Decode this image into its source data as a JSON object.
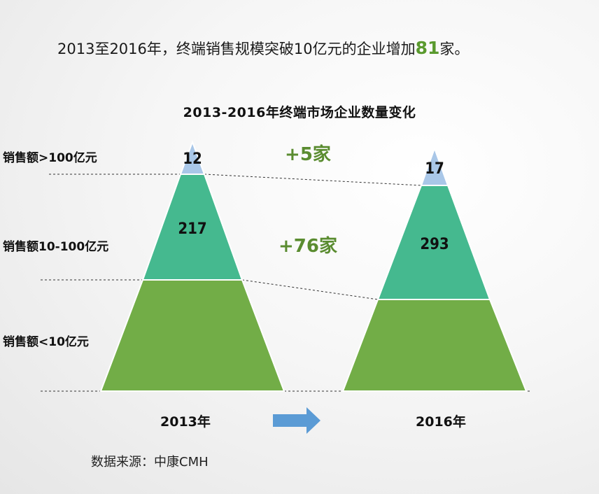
{
  "headline": {
    "prefix": "2013至2016年，终端销售规模突破10亿元的企业增加",
    "number": "81",
    "suffix": "家。"
  },
  "source": "数据来源：中康CMH",
  "chart_data": {
    "type": "pyramid",
    "title": "2013-2016年终端市场企业数量变化",
    "tiers": [
      "销售额>100亿元",
      "销售额10-100亿元",
      "销售额<10亿元"
    ],
    "series": [
      {
        "name": "2013年",
        "values": [
          12,
          217,
          null
        ]
      },
      {
        "name": "2016年",
        "values": [
          17,
          293,
          null
        ]
      }
    ],
    "annotations": [
      "+5家",
      "+76家"
    ],
    "colors": {
      "top": "#a9c7e8",
      "middle": "#45b98f",
      "bottom": "#72ad47",
      "arrow": "#5b9bd5",
      "delta": "#5a8c30"
    }
  }
}
